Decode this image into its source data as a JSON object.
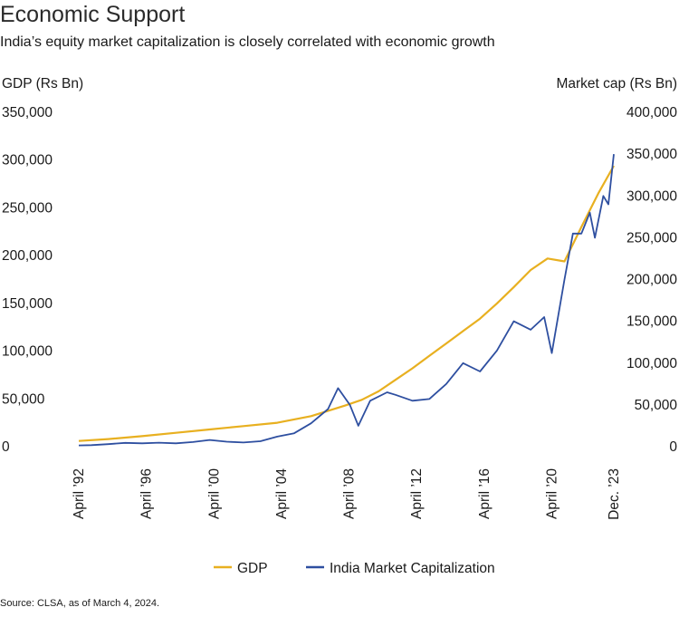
{
  "header": {
    "title": "Economic Support",
    "subtitle": "India’s equity market capitalization is closely correlated with economic growth"
  },
  "footer": {
    "source": "Source: CLSA, as of March 4, 2024."
  },
  "chart_data": {
    "type": "line",
    "left_axis": {
      "title": "GDP (Rs Bn)",
      "ylim": [
        0,
        350000
      ],
      "ticks": [
        0,
        50000,
        100000,
        150000,
        200000,
        250000,
        300000,
        350000
      ],
      "tick_labels": [
        "0",
        "50,000",
        "100,000",
        "150,000",
        "200,000",
        "250,000",
        "300,000",
        "350,000"
      ]
    },
    "right_axis": {
      "title": "Market cap (Rs Bn)",
      "ylim": [
        0,
        400000
      ],
      "ticks": [
        0,
        50000,
        100000,
        150000,
        200000,
        250000,
        300000,
        350000,
        400000
      ],
      "tick_labels": [
        "0",
        "50,000",
        "100,000",
        "150,000",
        "200,000",
        "250,000",
        "300,000",
        "350,000",
        "400,000"
      ]
    },
    "x_axis": {
      "range": [
        1992.25,
        2023.92
      ],
      "ticks": [
        1992.25,
        1996.25,
        2000.25,
        2004.25,
        2008.25,
        2012.25,
        2016.25,
        2020.25,
        2023.92
      ],
      "tick_labels": [
        "April ’92",
        "April ’96",
        "April ’00",
        "April ’04",
        "April ’08",
        "April ’12",
        "April ’16",
        "April ’20",
        "Dec. ’23"
      ]
    },
    "grid": false,
    "legend": "bottom-center",
    "colors": {
      "gdp": "#E8B020",
      "mcap": "#2E4FA0"
    },
    "series": [
      {
        "name": "GDP",
        "axis": "left",
        "points": [
          [
            1992.25,
            6000
          ],
          [
            1994,
            8000
          ],
          [
            1996,
            11000
          ],
          [
            1998,
            14500
          ],
          [
            2000,
            18000
          ],
          [
            2002,
            21500
          ],
          [
            2004,
            25000
          ],
          [
            2006,
            32000
          ],
          [
            2008,
            43000
          ],
          [
            2009,
            49000
          ],
          [
            2010,
            58000
          ],
          [
            2011,
            70000
          ],
          [
            2012,
            82000
          ],
          [
            2013,
            95000
          ],
          [
            2014,
            108000
          ],
          [
            2015,
            121000
          ],
          [
            2016,
            134000
          ],
          [
            2017,
            150000
          ],
          [
            2018,
            167000
          ],
          [
            2019,
            185000
          ],
          [
            2020,
            197000
          ],
          [
            2021,
            194000
          ],
          [
            2022,
            230000
          ],
          [
            2023,
            265000
          ],
          [
            2023.92,
            294000
          ]
        ]
      },
      {
        "name": "India Market Capitalization",
        "axis": "right",
        "points": [
          [
            1992.25,
            1500
          ],
          [
            1993,
            1800
          ],
          [
            1994,
            3000
          ],
          [
            1995,
            4500
          ],
          [
            1996,
            4000
          ],
          [
            1997,
            4800
          ],
          [
            1998,
            4000
          ],
          [
            1999,
            5500
          ],
          [
            2000,
            8000
          ],
          [
            2001,
            6000
          ],
          [
            2002,
            5000
          ],
          [
            2003,
            6500
          ],
          [
            2004,
            12000
          ],
          [
            2005,
            16000
          ],
          [
            2006,
            28000
          ],
          [
            2007,
            45000
          ],
          [
            2007.6,
            70000
          ],
          [
            2008.3,
            50000
          ],
          [
            2008.8,
            25000
          ],
          [
            2009.5,
            55000
          ],
          [
            2010.5,
            65000
          ],
          [
            2011,
            62000
          ],
          [
            2012,
            55000
          ],
          [
            2013,
            57000
          ],
          [
            2014,
            75000
          ],
          [
            2015,
            100000
          ],
          [
            2016,
            90000
          ],
          [
            2017,
            115000
          ],
          [
            2018,
            150000
          ],
          [
            2019,
            140000
          ],
          [
            2019.8,
            155000
          ],
          [
            2020.25,
            112000
          ],
          [
            2021,
            200000
          ],
          [
            2021.5,
            255000
          ],
          [
            2022,
            255000
          ],
          [
            2022.5,
            280000
          ],
          [
            2022.8,
            250000
          ],
          [
            2023.3,
            300000
          ],
          [
            2023.6,
            290000
          ],
          [
            2023.92,
            350000
          ]
        ]
      }
    ]
  }
}
